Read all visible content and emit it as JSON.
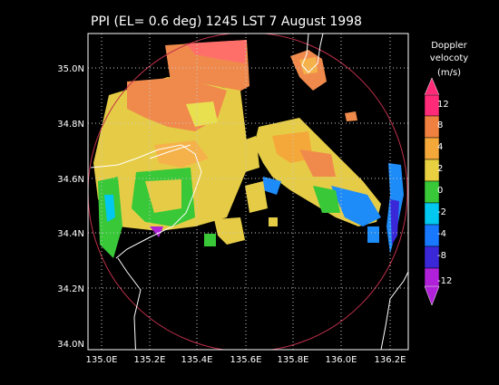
{
  "title": "PPI (EL= 0.6 deg)  1245 LST 7 August 1998",
  "x_ticks": [
    "135.0E",
    "135.2E",
    "135.4E",
    "135.6E",
    "135.8E",
    "136.0E",
    "136.2E"
  ],
  "y_ticks": [
    "35.0N",
    "34.8N",
    "34.6N",
    "34.4N",
    "34.2N",
    "34.0N"
  ],
  "colorbar": {
    "title_lines": [
      "Doppler",
      "velocoty",
      "(m/s)"
    ],
    "labels": [
      "12",
      "8",
      "4",
      "2",
      "0",
      "-2",
      "-4",
      "-8",
      "-12"
    ],
    "colors": [
      "#ff2a78",
      "#f08040",
      "#f5a83a",
      "#e8d040",
      "#38c838",
      "#00c8f0",
      "#1878ff",
      "#3a28d8",
      "#b020d8"
    ]
  },
  "colors": {
    "range_ring": "#c0304a",
    "coastline": "#ffffff",
    "grid": "#c8c8c8"
  }
}
